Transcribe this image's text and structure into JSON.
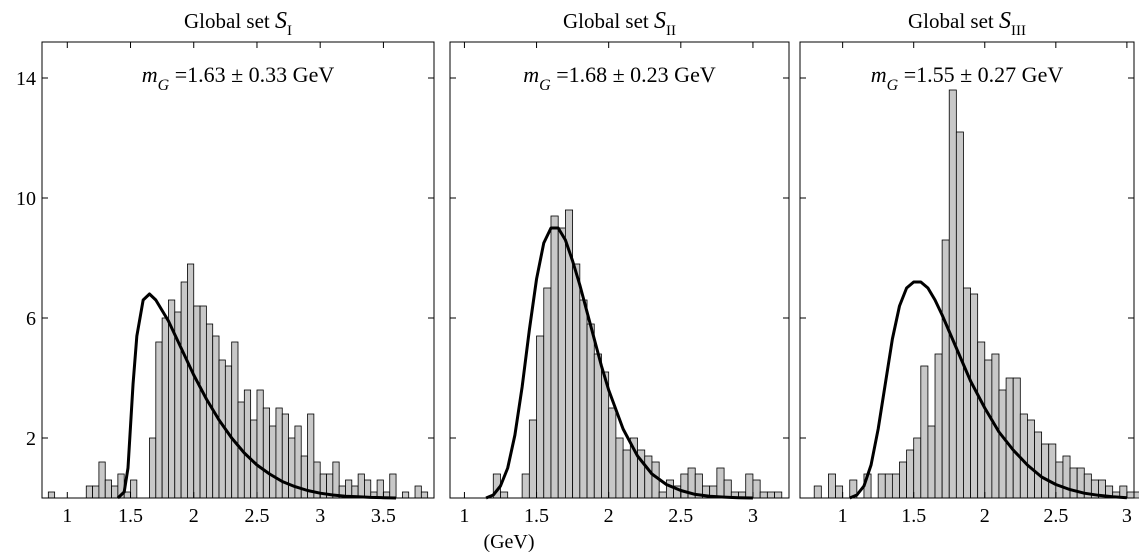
{
  "chart_data": [
    {
      "type": "bar",
      "title_prefix": "Global set ",
      "title_symbol": "S",
      "title_subscript": "I",
      "annotation": {
        "symbol": "m",
        "subscript": "G",
        "text": " =1.63 ± 0.33 GeV"
      },
      "xlim": [
        0.8,
        3.9
      ],
      "ylim": [
        0,
        15.2
      ],
      "xticks": [
        1,
        1.5,
        2,
        2.5,
        3,
        3.5
      ],
      "xtick_labels": [
        "1",
        "1.5",
        "2",
        "2.5",
        "3",
        "3.5"
      ],
      "yticks": [
        2,
        6,
        10,
        14
      ],
      "ytick_labels": [
        "2",
        "6",
        "10",
        "14"
      ],
      "bin_start": 0.85,
      "bin_width": 0.05,
      "values": [
        0.2,
        0,
        0,
        0,
        0,
        0,
        0.4,
        0.4,
        1.2,
        0.6,
        0.4,
        0.8,
        0.2,
        0.6,
        0,
        0,
        2.0,
        5.2,
        6.0,
        6.6,
        6.2,
        7.2,
        7.8,
        6.4,
        6.4,
        5.8,
        5.4,
        4.6,
        4.4,
        5.2,
        3.2,
        3.6,
        2.6,
        3.6,
        3.0,
        2.4,
        3.0,
        2.8,
        2.0,
        2.4,
        1.4,
        2.8,
        1.2,
        0.8,
        0.8,
        1.2,
        0.4,
        0.6,
        0.4,
        0.8,
        0.6,
        0.2,
        0.6,
        0.2,
        0.8,
        0,
        0.2,
        0,
        0.4,
        0.2,
        0,
        0,
        0,
        0
      ],
      "curve": {
        "x": [
          1.4,
          1.45,
          1.48,
          1.5,
          1.52,
          1.55,
          1.6,
          1.65,
          1.7,
          1.8,
          1.9,
          2.0,
          2.1,
          2.2,
          2.3,
          2.4,
          2.5,
          2.6,
          2.7,
          2.8,
          2.9,
          3.0,
          3.1,
          3.2,
          3.3,
          3.4,
          3.5,
          3.6
        ],
        "y": [
          0,
          0.2,
          1.0,
          2.4,
          3.8,
          5.4,
          6.6,
          6.8,
          6.6,
          5.9,
          5.0,
          4.1,
          3.3,
          2.6,
          2.0,
          1.5,
          1.1,
          0.8,
          0.55,
          0.38,
          0.25,
          0.16,
          0.1,
          0.06,
          0.04,
          0.02,
          0.01,
          0
        ]
      }
    },
    {
      "type": "bar",
      "title_prefix": "Global set ",
      "title_symbol": "S",
      "title_subscript": "II",
      "annotation": {
        "symbol": "m",
        "subscript": "G",
        "text": " =1.68 ± 0.23 GeV"
      },
      "xlim": [
        0.9,
        3.25
      ],
      "ylim": [
        0,
        15.2
      ],
      "xticks": [
        1,
        1.5,
        2,
        2.5,
        3
      ],
      "xtick_labels": [
        "1",
        "1.5",
        "2",
        "2.5",
        "3"
      ],
      "yticks": [
        2,
        6,
        10,
        14
      ],
      "ytick_labels": [
        "",
        "",
        "",
        ""
      ],
      "bin_start": 1.0,
      "bin_width": 0.05,
      "values": [
        0,
        0,
        0,
        0,
        0.8,
        0.2,
        0,
        0,
        0.8,
        2.6,
        5.4,
        7.0,
        9.4,
        9.0,
        9.6,
        7.8,
        6.6,
        5.8,
        4.8,
        4.2,
        3.0,
        2.0,
        1.6,
        2.0,
        1.6,
        1.4,
        1.2,
        0.2,
        0.6,
        0.4,
        0.8,
        1.0,
        0.8,
        0.4,
        0.4,
        1.0,
        0.6,
        0.2,
        0.2,
        0.8,
        0.6,
        0.2,
        0.2,
        0.2,
        0
      ],
      "curve": {
        "x": [
          1.15,
          1.2,
          1.25,
          1.3,
          1.35,
          1.4,
          1.45,
          1.5,
          1.55,
          1.6,
          1.65,
          1.7,
          1.75,
          1.8,
          1.85,
          1.9,
          1.95,
          2.0,
          2.1,
          2.2,
          2.3,
          2.4,
          2.5,
          2.6,
          2.7,
          2.8,
          2.9,
          3.0
        ],
        "y": [
          0,
          0.1,
          0.4,
          1.0,
          2.1,
          3.7,
          5.6,
          7.3,
          8.5,
          9.0,
          9.0,
          8.6,
          7.9,
          7.1,
          6.2,
          5.3,
          4.4,
          3.6,
          2.3,
          1.4,
          0.8,
          0.45,
          0.25,
          0.12,
          0.06,
          0.03,
          0.01,
          0
        ]
      }
    },
    {
      "type": "bar",
      "title_prefix": "Global set ",
      "title_symbol": "S",
      "title_subscript": "III",
      "annotation": {
        "symbol": "m",
        "subscript": "G",
        "text": " =1.55 ± 0.27 GeV"
      },
      "xlim": [
        0.7,
        3.05
      ],
      "ylim": [
        0,
        15.2
      ],
      "xticks": [
        1,
        1.5,
        2,
        2.5,
        3
      ],
      "xtick_labels": [
        "1",
        "1.5",
        "2",
        "2.5",
        "3"
      ],
      "yticks": [
        2,
        6,
        10,
        14
      ],
      "ytick_labels": [
        "",
        "",
        "",
        ""
      ],
      "bin_start": 0.8,
      "bin_width": 0.05,
      "values": [
        0.4,
        0,
        0.8,
        0.4,
        0,
        0.6,
        0,
        0.8,
        0,
        0.8,
        0.8,
        0.8,
        1.2,
        1.6,
        2.0,
        4.4,
        2.4,
        4.8,
        8.6,
        13.6,
        12.2,
        7.0,
        6.8,
        5.2,
        4.6,
        4.8,
        3.6,
        4.0,
        4.0,
        2.8,
        2.6,
        2.2,
        1.8,
        1.8,
        1.2,
        1.4,
        1.0,
        1.0,
        0.8,
        0.6,
        0.6,
        0.4,
        0.2,
        0.4,
        0.2,
        0.2,
        0.4,
        0.2,
        0.2,
        0,
        0
      ],
      "curve": {
        "x": [
          1.05,
          1.1,
          1.15,
          1.2,
          1.25,
          1.3,
          1.35,
          1.4,
          1.45,
          1.5,
          1.55,
          1.6,
          1.65,
          1.7,
          1.8,
          1.9,
          2.0,
          2.1,
          2.2,
          2.3,
          2.4,
          2.5,
          2.6,
          2.7,
          2.8,
          2.9,
          3.0
        ],
        "y": [
          0,
          0.1,
          0.4,
          1.1,
          2.3,
          3.8,
          5.3,
          6.4,
          7.0,
          7.2,
          7.2,
          7.0,
          6.6,
          6.1,
          5.0,
          3.9,
          3.0,
          2.2,
          1.6,
          1.1,
          0.7,
          0.45,
          0.28,
          0.16,
          0.09,
          0.04,
          0.01
        ]
      }
    }
  ],
  "x_unit_label": "(GeV)"
}
